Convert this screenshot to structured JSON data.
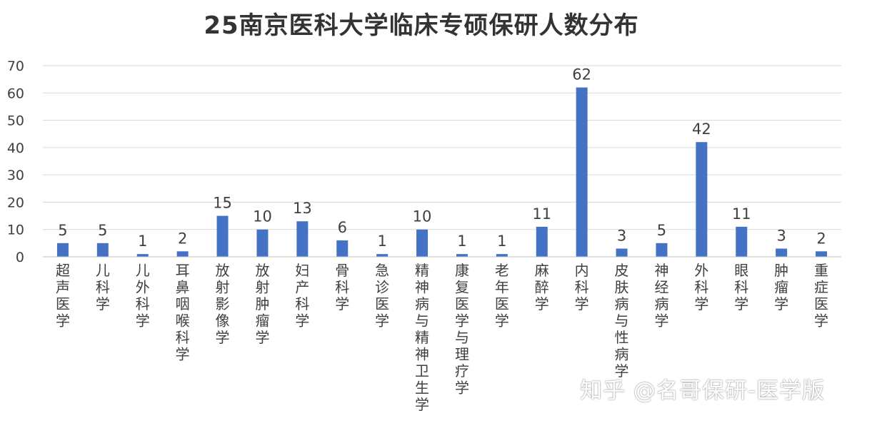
{
  "chart_data": {
    "type": "bar",
    "title": "25南京医科大学临床专硕保研人数分布",
    "categories": [
      "超声医学",
      "儿科学",
      "儿外科学",
      "耳鼻咽喉科学",
      "放射影像学",
      "放射肿瘤学",
      "妇产科学",
      "骨科学",
      "急诊医学",
      "精神病与精神卫生学",
      "康复医学与理疗学",
      "老年医学",
      "麻醉学",
      "内科学",
      "皮肤病与性病学",
      "神经病学",
      "外科学",
      "眼科学",
      "肿瘤学",
      "重症医学"
    ],
    "values": [
      5,
      5,
      1,
      2,
      15,
      10,
      13,
      6,
      1,
      10,
      1,
      1,
      11,
      62,
      3,
      5,
      42,
      11,
      3,
      2
    ],
    "ylim": [
      0,
      70
    ],
    "yticks": [
      0,
      10,
      20,
      30,
      40,
      50,
      60,
      70
    ],
    "xlabel": "",
    "ylabel": "",
    "grid": true,
    "legend": "none",
    "bar_color": "#4472C4",
    "grid_color": "#D9D9D9",
    "text_color": "#404040"
  },
  "watermark": "知乎 @名哥保研-医学版"
}
